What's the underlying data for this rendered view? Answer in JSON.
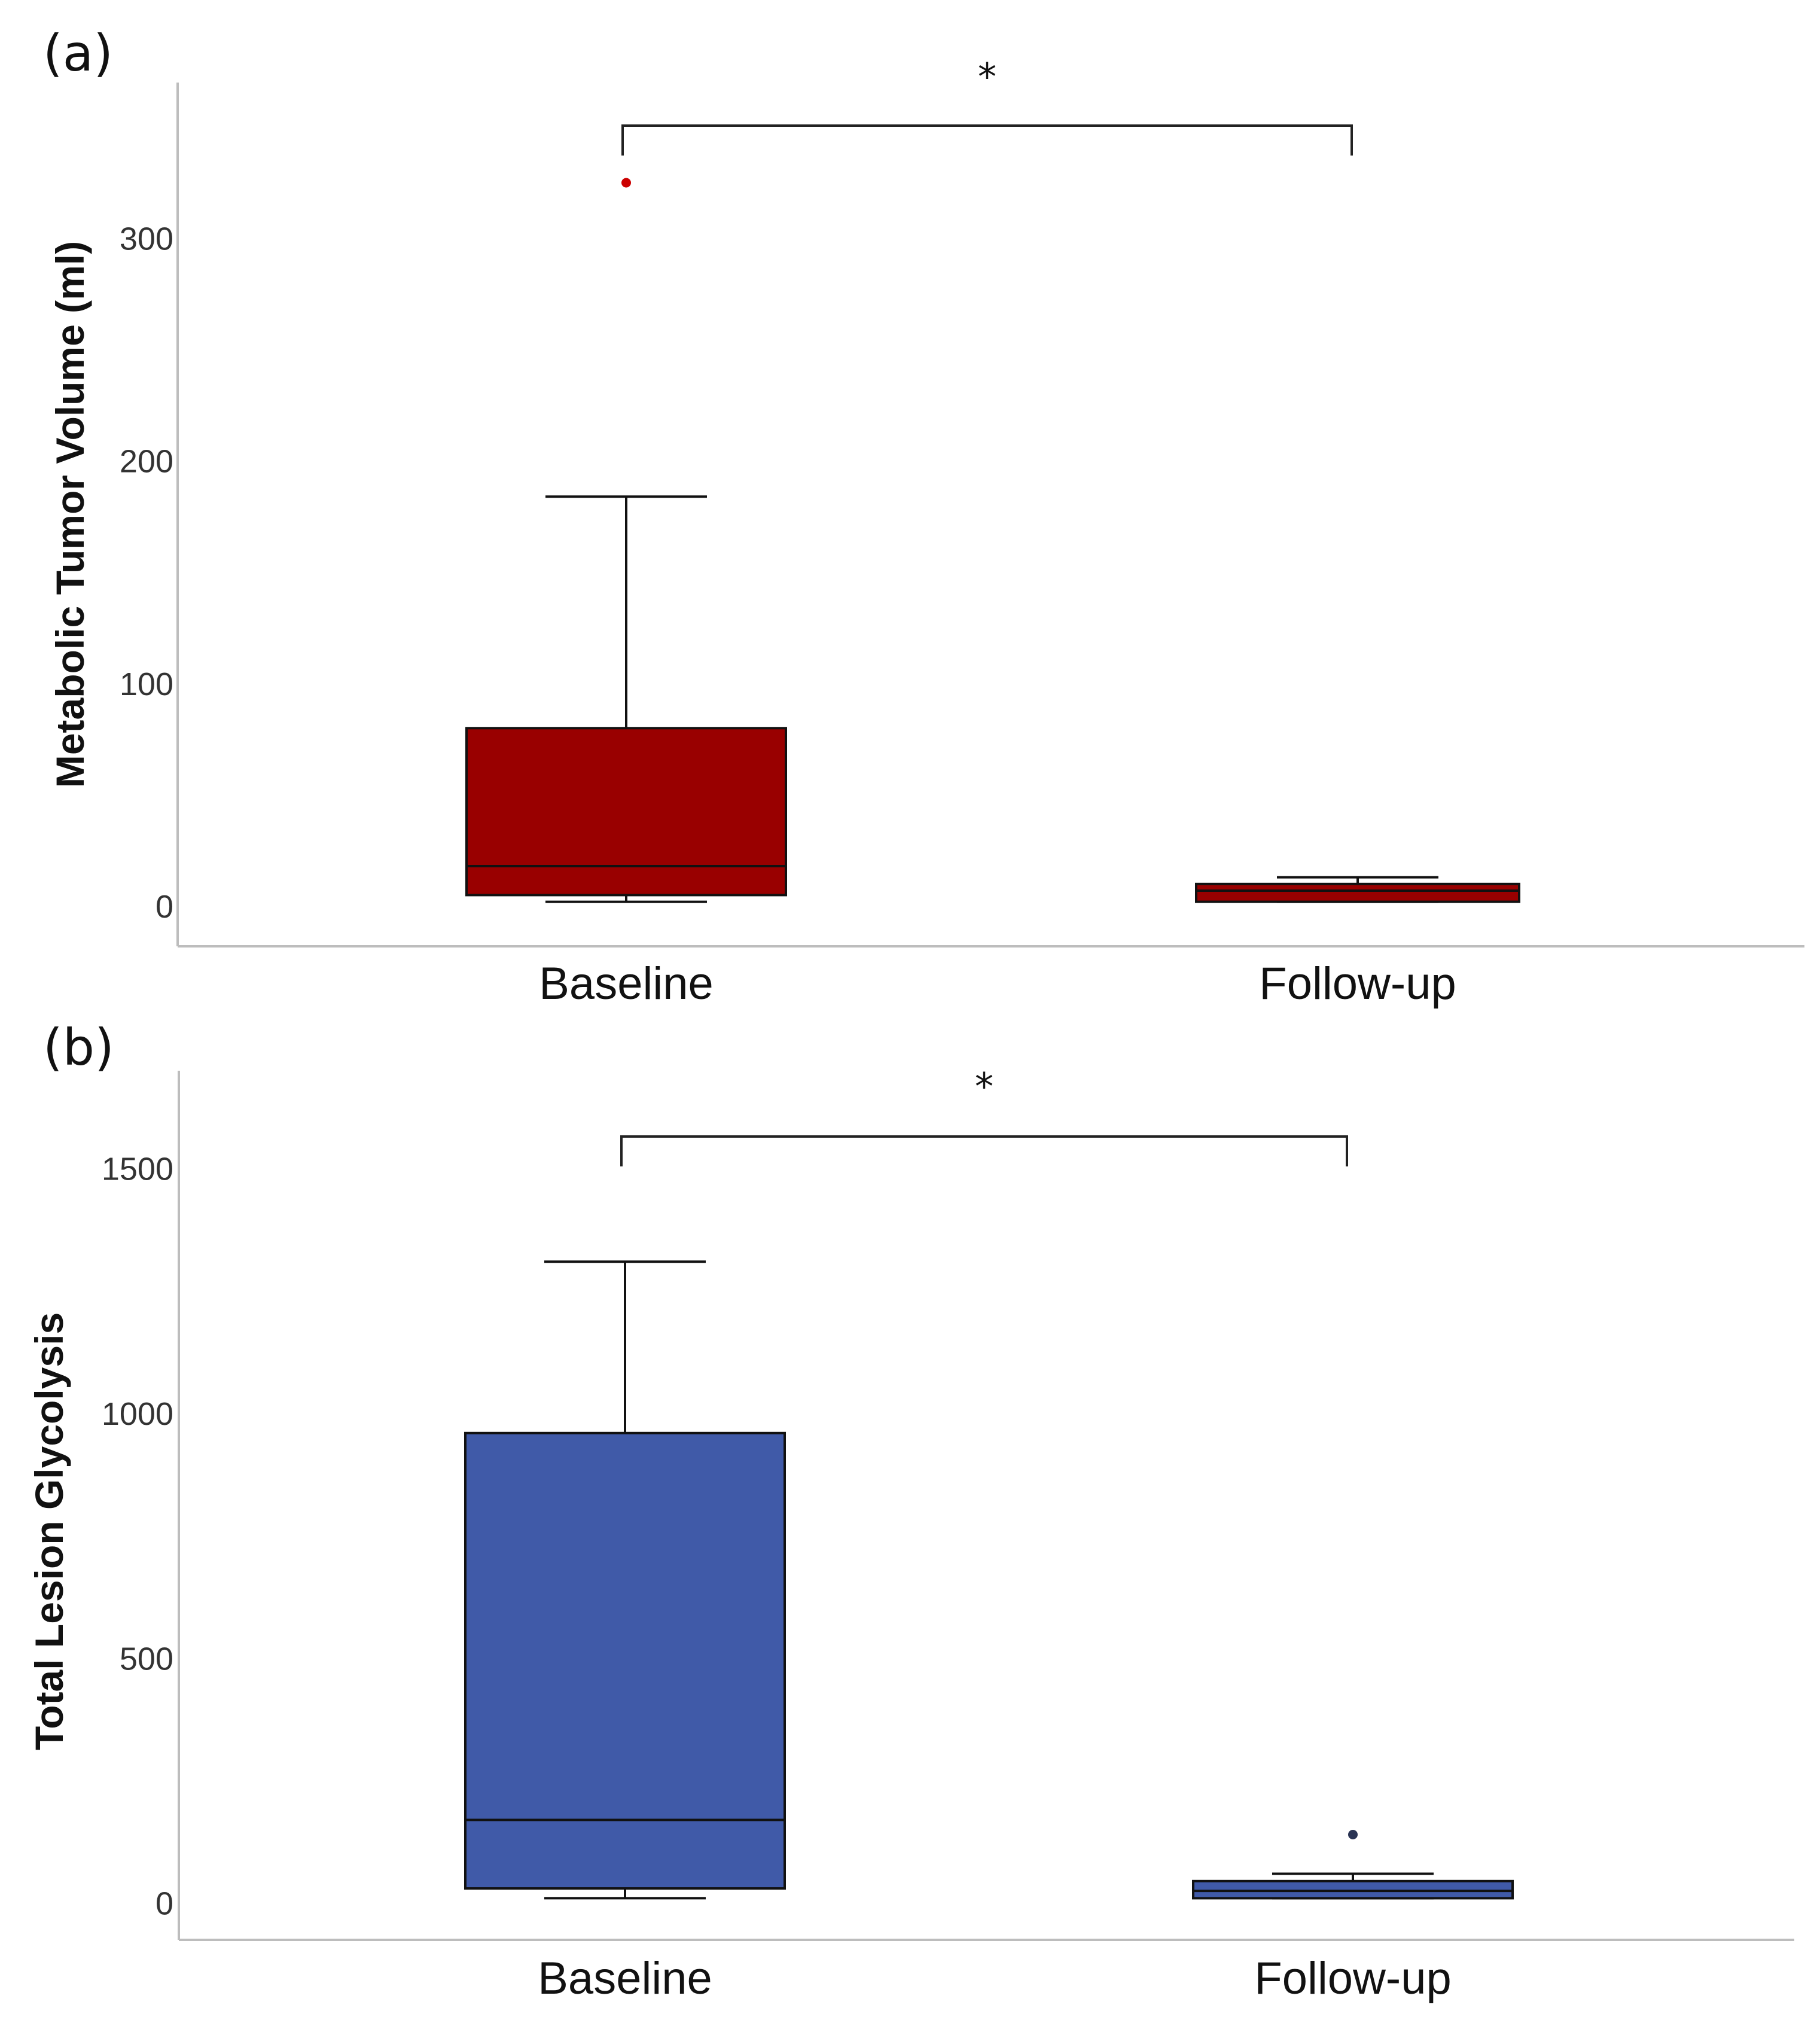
{
  "chart_data": [
    {
      "type": "boxplot",
      "panel_label": "(a)",
      "categories": [
        "Baseline",
        "Follow-up"
      ],
      "ylabel": "Metabolic Tumor Volume (ml)",
      "xlabel": "",
      "ylim": [
        -18,
        370
      ],
      "yticks": [
        0,
        100,
        200,
        300
      ],
      "ytick_labels": [
        "0",
        "100",
        "200",
        "300"
      ],
      "color": "#990000",
      "boxes": [
        {
          "category": "Baseline",
          "min": 2,
          "q1": 5,
          "median": 18,
          "q3": 80,
          "max": 184,
          "outliers": [
            325
          ]
        },
        {
          "category": "Follow-up",
          "min": 2,
          "q1": 2,
          "median": 7,
          "q3": 10,
          "max": 13,
          "outliers": []
        }
      ],
      "significance": {
        "label": "*",
        "from": "Baseline",
        "to": "Follow-up"
      }
    },
    {
      "type": "boxplot",
      "panel_label": "(b)",
      "categories": [
        "Baseline",
        "Follow-up"
      ],
      "ylabel": "Total Lesion Glycolysis",
      "xlabel": "",
      "ylim": [
        -75,
        1700
      ],
      "yticks": [
        0,
        500,
        1000,
        1500
      ],
      "ytick_labels": [
        "0",
        "500",
        "1000",
        "1500"
      ],
      "color": "#405aa8",
      "boxes": [
        {
          "category": "Baseline",
          "min": 10,
          "q1": 30,
          "median": 170,
          "q3": 960,
          "max": 1310,
          "outliers": []
        },
        {
          "category": "Follow-up",
          "min": 10,
          "q1": 10,
          "median": 25,
          "q3": 45,
          "max": 60,
          "outliers": [
            140
          ]
        }
      ],
      "significance": {
        "label": "*",
        "from": "Baseline",
        "to": "Follow-up"
      }
    }
  ]
}
